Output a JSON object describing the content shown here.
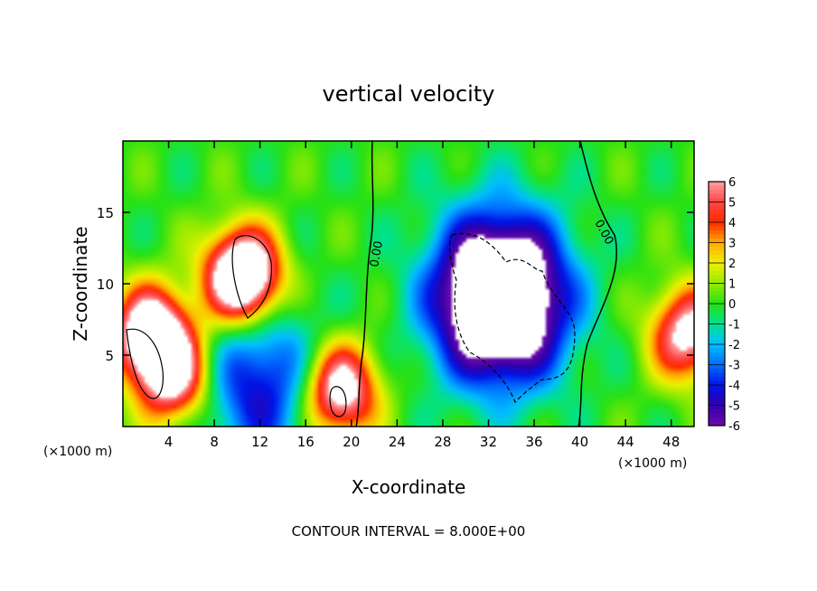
{
  "chart_data": {
    "type": "heatmap",
    "title": "vertical velocity",
    "xlabel": "X-coordinate",
    "ylabel": "Z-coordinate",
    "x_unit_left": "(×1000 m)",
    "x_unit_right": "(×1000 m)",
    "xlim": [
      0,
      50
    ],
    "ylim": [
      0,
      20
    ],
    "x_ticks": [
      4,
      8,
      12,
      16,
      20,
      24,
      28,
      32,
      36,
      40,
      44,
      48
    ],
    "y_ticks": [
      5,
      10,
      15
    ],
    "colorbar": {
      "ticks": [
        6,
        5,
        4,
        3,
        2,
        1,
        0,
        -1,
        -2,
        -3,
        -4,
        -5,
        -6
      ],
      "range": [
        -6,
        6
      ],
      "saturation_color": "#ffffff"
    },
    "contour_labels": [
      "0.00",
      "0.00"
    ],
    "footer": "CONTOUR INTERVAL = 8.000E+00",
    "features": [
      {
        "kind": "updraft",
        "x": 2.5,
        "z": 6.5,
        "w": 9
      },
      {
        "kind": "updraft",
        "x": 4.5,
        "z": 3.5,
        "w": 7
      },
      {
        "kind": "updraft",
        "x": 10.5,
        "z": 10.5,
        "w": 11
      },
      {
        "kind": "updraft",
        "x": 19,
        "z": 2.5,
        "w": 8
      },
      {
        "kind": "updraft",
        "x": 49.5,
        "z": 6.5,
        "w": 7
      },
      {
        "kind": "downdraft",
        "x": 33,
        "z": 9,
        "w": -12
      },
      {
        "kind": "downdraft",
        "x": 12,
        "z": 3,
        "w": -4.5
      }
    ]
  }
}
